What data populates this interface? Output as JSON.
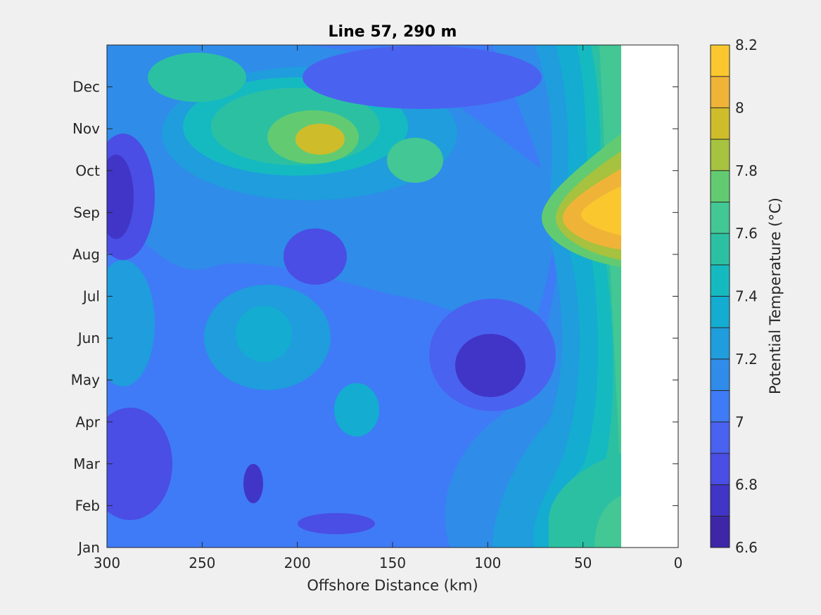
{
  "chart_data": {
    "type": "heatmap",
    "title": "Line 57, 290 m",
    "xlabel": "Offshore Distance (km)",
    "ylabel": "",
    "xlim": [
      300,
      0
    ],
    "x_reversed": true,
    "xticks": [
      "300",
      "250",
      "200",
      "150",
      "100",
      "50",
      "0"
    ],
    "xtick_values": [
      300,
      250,
      200,
      150,
      100,
      50,
      0
    ],
    "ylim": [
      1,
      13
    ],
    "yticks": [
      "Jan",
      "Feb",
      "Mar",
      "Apr",
      "May",
      "Jun",
      "Jul",
      "Aug",
      "Sep",
      "Oct",
      "Nov",
      "Dec"
    ],
    "ytick_values": [
      1,
      2,
      3,
      4,
      5,
      6,
      7,
      8,
      9,
      10,
      11,
      12
    ],
    "data_extent_x_km": [
      300,
      30
    ],
    "colorbar": {
      "label": "Potential Temperature (°C)",
      "range": [
        6.6,
        8.2
      ],
      "ticks": [
        "6.6",
        "6.8",
        "7",
        "7.2",
        "7.4",
        "7.6",
        "7.8",
        "8",
        "8.2"
      ],
      "tick_values": [
        6.6,
        6.8,
        7.0,
        7.2,
        7.4,
        7.6,
        7.8,
        8.0,
        8.2
      ],
      "levels": [
        6.6,
        6.7,
        6.8,
        6.9,
        7.0,
        7.1,
        7.2,
        7.3,
        7.4,
        7.5,
        7.6,
        7.7,
        7.8,
        7.9,
        8.0,
        8.1,
        8.2
      ],
      "colors": [
        "#3e26a8",
        "#4135c7",
        "#4a4ee4",
        "#4a62f0",
        "#3f7bf6",
        "#2f8ce9",
        "#1f9ddd",
        "#14acd0",
        "#15bac0",
        "#2cc0a2",
        "#43c794",
        "#62cb71",
        "#a6c23e",
        "#cebc2b",
        "#efb338",
        "#fbc72f"
      ]
    },
    "grid": false,
    "field_samples": {
      "note_units": "x in km offshore, y in month number, value in °C",
      "x": [
        300,
        255,
        210,
        165,
        120,
        75,
        45,
        30
      ],
      "y": [
        1,
        3,
        5,
        7,
        9,
        11,
        13
      ],
      "z": [
        [
          7.1,
          7.0,
          6.9,
          6.9,
          6.9,
          7.2,
          7.5,
          7.6
        ],
        [
          6.8,
          6.9,
          6.9,
          7.0,
          7.0,
          7.2,
          7.4,
          7.4
        ],
        [
          7.0,
          6.9,
          7.1,
          7.2,
          6.7,
          7.1,
          7.3,
          7.4
        ],
        [
          7.3,
          7.1,
          7.3,
          7.2,
          7.1,
          7.1,
          7.4,
          7.4
        ],
        [
          6.7,
          6.9,
          7.0,
          7.0,
          7.1,
          7.2,
          8.0,
          8.1
        ],
        [
          7.0,
          7.3,
          7.8,
          7.6,
          7.2,
          7.1,
          7.4,
          7.6
        ],
        [
          7.0,
          7.5,
          7.3,
          6.9,
          6.9,
          7.3,
          7.5,
          7.6
        ]
      ]
    }
  }
}
